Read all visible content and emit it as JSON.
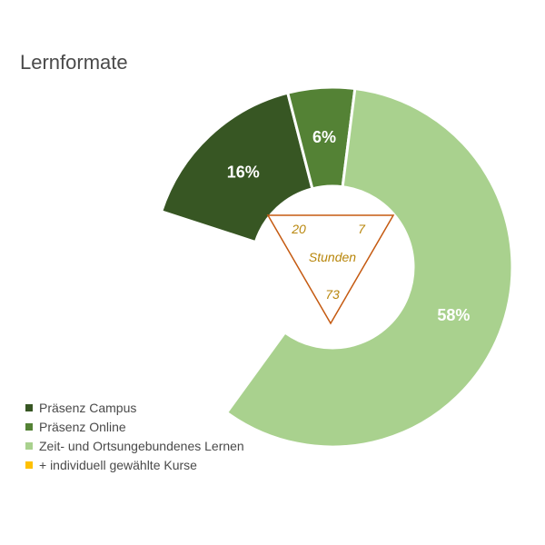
{
  "chart_data": {
    "type": "pie",
    "variant": "doughnut",
    "title": "Lernformate",
    "categories": [
      "Präsenz Campus",
      "Präsenz Online",
      "Zeit- und Ortsungebundenes Lernen",
      "+ individuell gewählte Kurse"
    ],
    "values": [
      16,
      6,
      58,
      20
    ],
    "value_labels": [
      "16%",
      "6%",
      "58%",
      ""
    ],
    "colors": [
      "#375623",
      "#548235",
      "#a9d18e",
      "#ffffff"
    ],
    "legend": {
      "placement": "bottom-left",
      "items": [
        {
          "label": "Präsenz Campus",
          "color": "#375623"
        },
        {
          "label": "Präsenz Online",
          "color": "#548235"
        },
        {
          "label": "Zeit- und Ortsungebundenes Lernen",
          "color": "#a9d18e"
        },
        {
          "label": "+ individuell gewählte Kurse",
          "color": "#ffc000"
        }
      ]
    },
    "center_annotation": {
      "label": "Stunden",
      "values": [
        "20",
        "7",
        "73"
      ],
      "color": "#c55a11",
      "text_color": "#b8860b"
    }
  }
}
